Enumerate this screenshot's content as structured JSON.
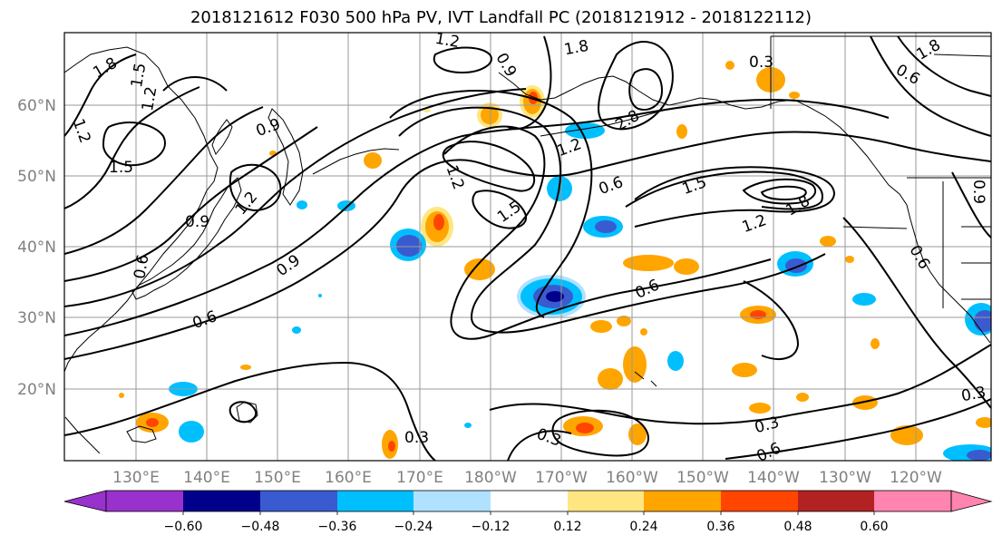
{
  "title": "2018121612 F030 500 hPa PV, IVT Landfall PC (2018121912 - 2018122112)",
  "map": {
    "lon_labels": [
      "130°E",
      "140°E",
      "150°E",
      "160°E",
      "170°E",
      "180°W",
      "170°W",
      "160°W",
      "150°W",
      "140°W",
      "130°W",
      "120°W"
    ],
    "lat_labels": [
      "60°N",
      "50°N",
      "40°N",
      "30°N",
      "20°N"
    ],
    "contour_labels": [
      "1.8",
      "1.5",
      "1.2",
      "1.2",
      "0.9",
      "1.5",
      "0.9",
      "1.2",
      "0.6",
      "0.9",
      "0.6",
      "1.2",
      "1.8",
      "0.9",
      "1.2",
      "1.5",
      "0.6",
      "1.5",
      "1.2",
      "1.8",
      "0.6",
      "0.6",
      "0.3",
      "0.3",
      "0.3",
      "0.6",
      "0.3",
      "1.2",
      "1.8",
      "2.8",
      "0.6",
      "0.3",
      "0.9"
    ],
    "label_color": "#808080",
    "grid_color": "#9a9a9a",
    "contour_color": "#000000"
  },
  "colorbar": {
    "ticks": [
      "−0.60",
      "−0.48",
      "−0.36",
      "−0.24",
      "−0.12",
      "0.12",
      "0.24",
      "0.36",
      "0.48",
      "0.60"
    ],
    "colors": [
      "#9932cc",
      "#00008b",
      "#3a5bd0",
      "#00bfff",
      "#b0e2ff",
      "#ffffff",
      "#ffe680",
      "#ffa500",
      "#ff4500",
      "#b22222",
      "#ff85b0"
    ]
  }
}
